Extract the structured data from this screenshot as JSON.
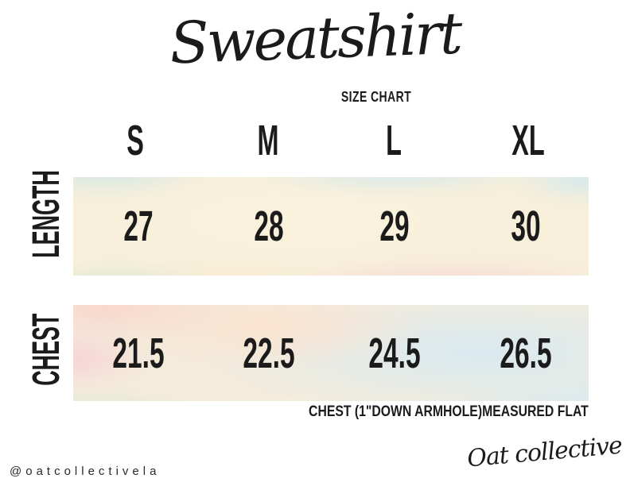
{
  "title": {
    "text": "Sweatshirt",
    "subtitle": "SIZE CHART"
  },
  "table": {
    "columns": [
      "S",
      "M",
      "L",
      "XL"
    ],
    "rows": [
      {
        "label": "LENGTH",
        "values": [
          "27",
          "28",
          "29",
          "30"
        ]
      },
      {
        "label": "CHEST",
        "values": [
          "21.5",
          "22.5",
          "24.5",
          "26.5"
        ]
      }
    ],
    "note": "CHEST (1\"DOWN ARMHOLE)MEASURED FLAT"
  },
  "footer": {
    "handle": "@oatcollectivela",
    "brand": "Oat collective"
  },
  "colors": {
    "ink": "#1b1b1b",
    "wc-blue": "#cfe7e9",
    "wc-blue2": "#d0e8f0",
    "wc-blue3": "#d9eaf1",
    "wc-mint": "#d9e8d6",
    "wc-peach": "#fbe3cf",
    "wc-peachpink": "#f9d6cc",
    "wc-pink": "#f8cfd6",
    "wc-cream": "#fbf2dd",
    "wc-base1": "#f7efd9",
    "wc-base2": "#f4ebdb"
  }
}
